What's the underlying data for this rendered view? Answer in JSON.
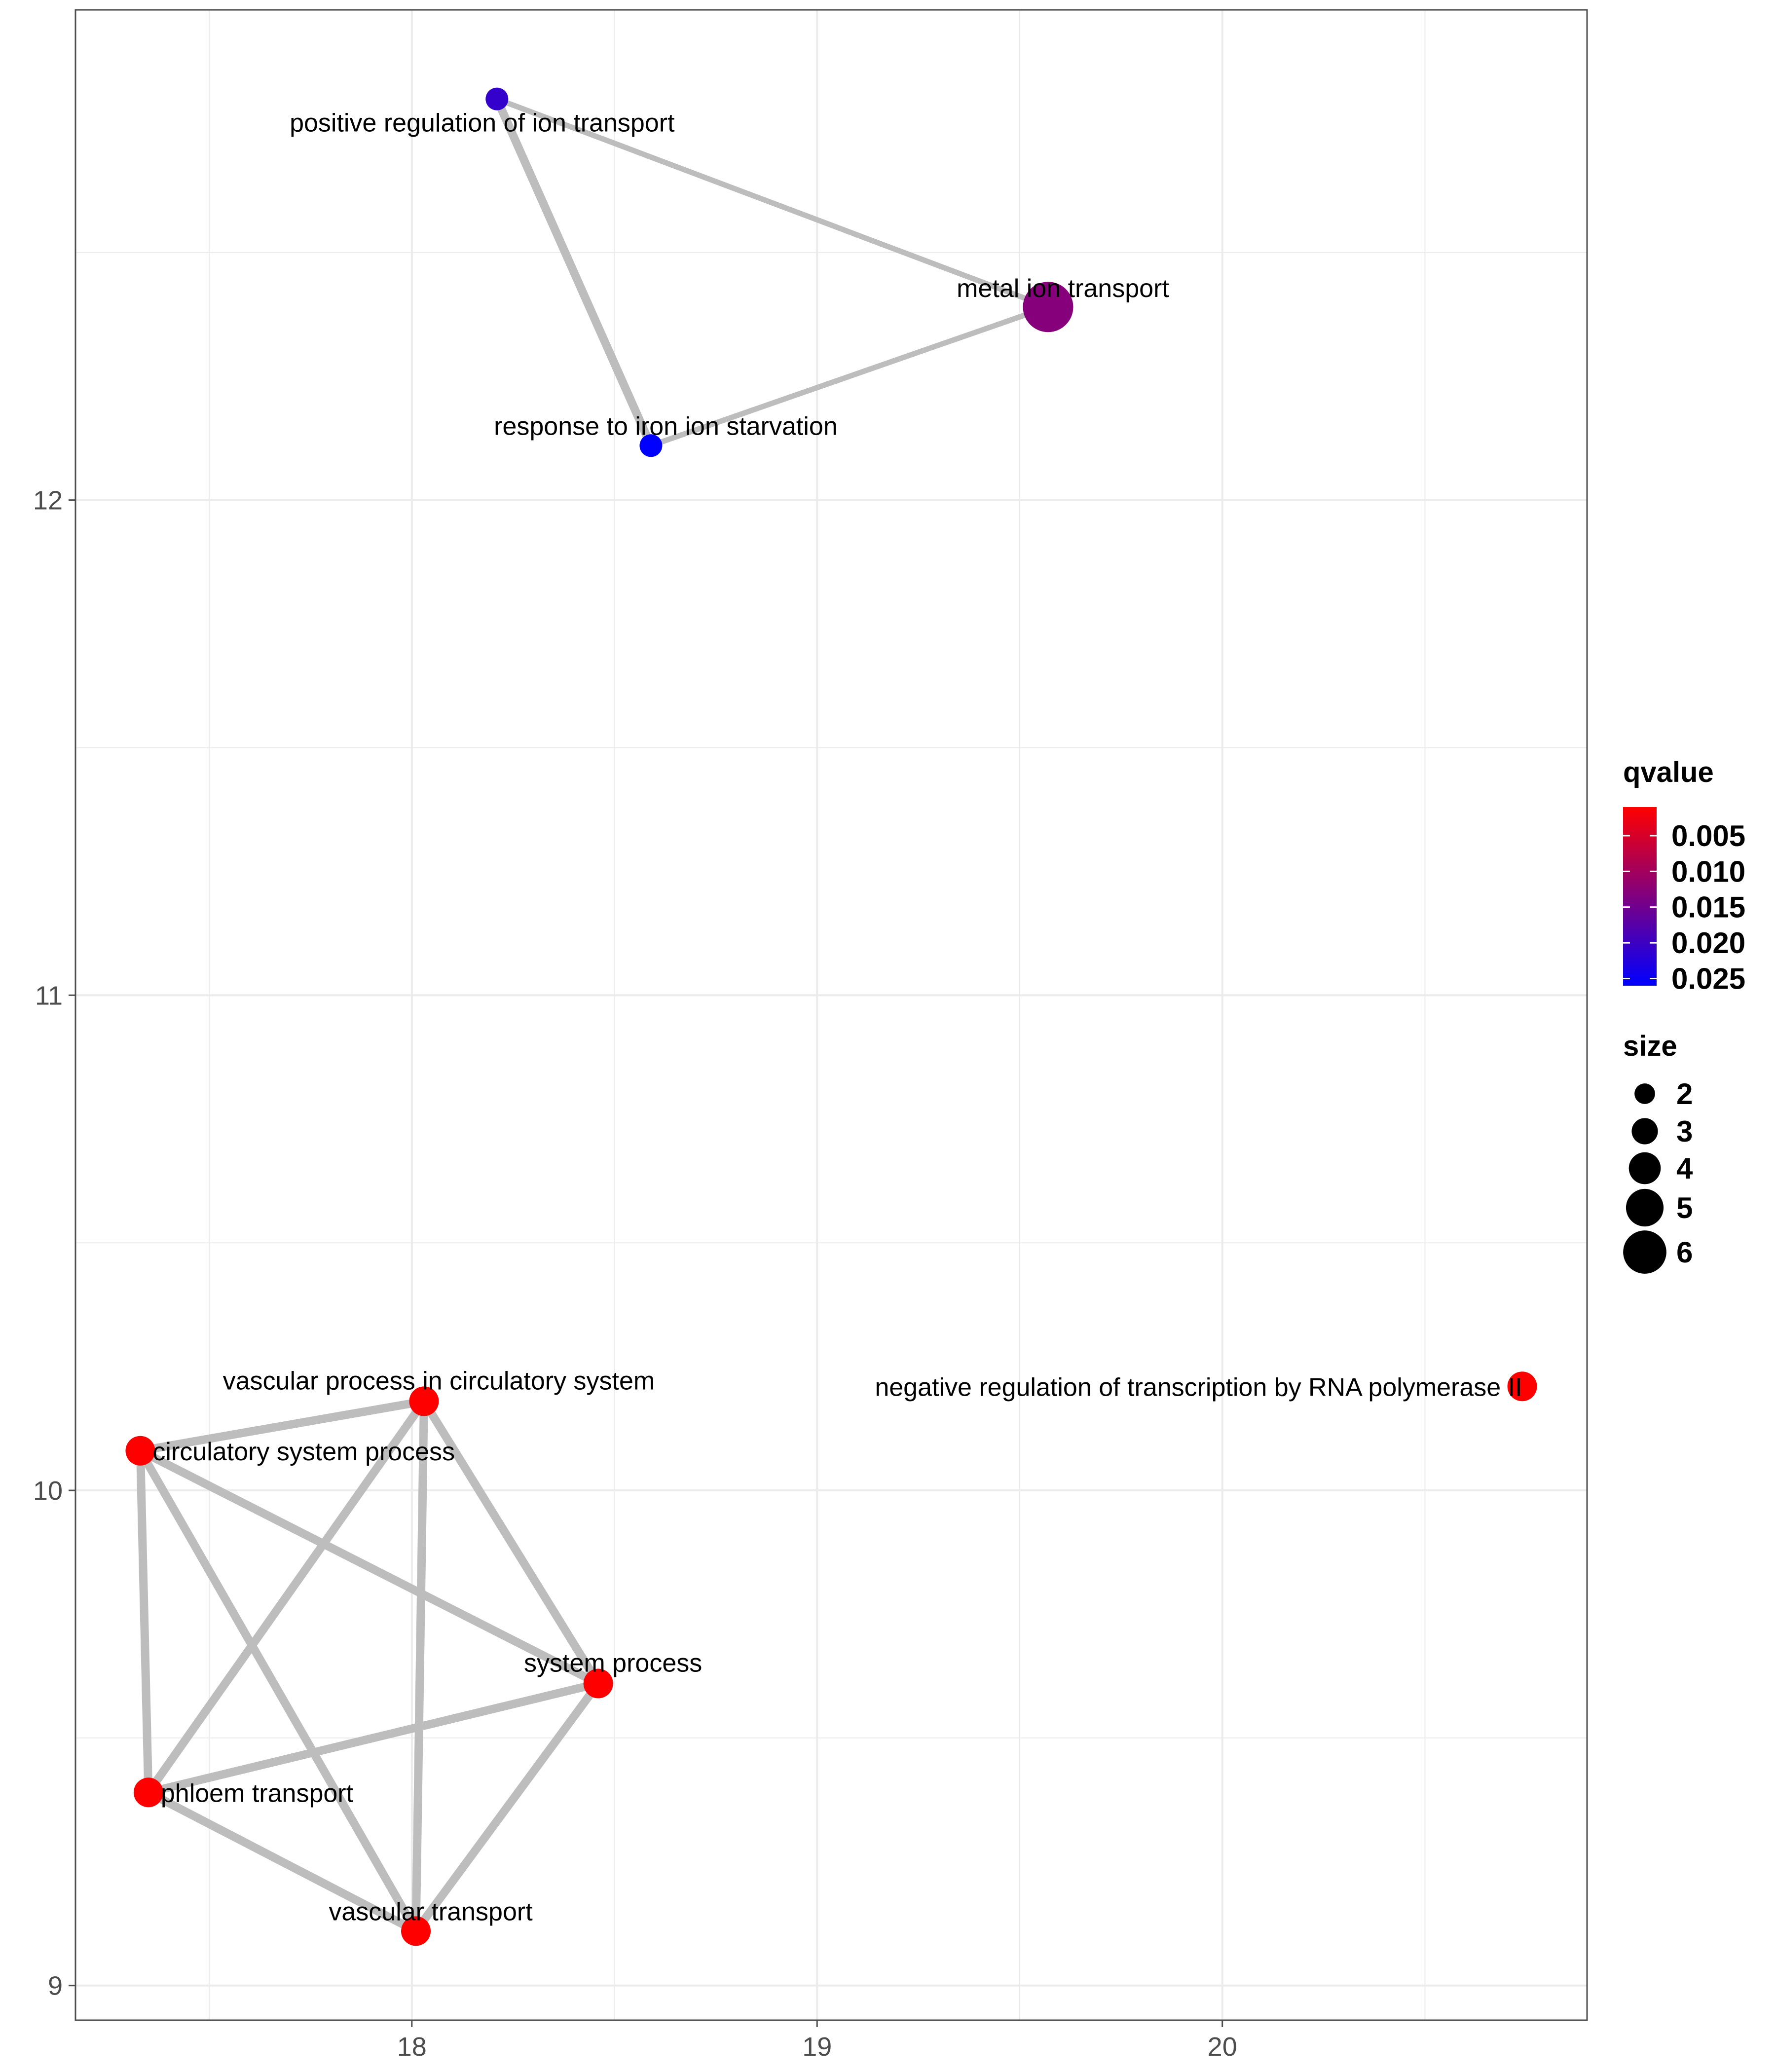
{
  "chart_data": {
    "type": "scatter",
    "subtype": "network",
    "title": "",
    "xlabel": "",
    "ylabel": "",
    "xlim": [
      17.17,
      20.9
    ],
    "ylim": [
      8.93,
      12.99
    ],
    "x_ticks": [
      18,
      19,
      20
    ],
    "y_ticks": [
      9,
      10,
      11,
      12
    ],
    "grid": true,
    "nodes": [
      {
        "id": "pos_reg",
        "label": "positive regulation of ion transport",
        "x": 18.21,
        "y": 12.81,
        "qvalue": 0.021,
        "size": 2
      },
      {
        "id": "metal",
        "label": "metal ion transport",
        "x": 19.57,
        "y": 12.39,
        "qvalue": 0.013,
        "size": 6
      },
      {
        "id": "iron",
        "label": "response to iron ion starvation",
        "x": 18.59,
        "y": 12.11,
        "qvalue": 0.026,
        "size": 2
      },
      {
        "id": "vasc_circ",
        "label": "vascular process in circulatory system",
        "x": 18.03,
        "y": 10.18,
        "qvalue": 0.001,
        "size": 3
      },
      {
        "id": "circ",
        "label": "circulatory system process",
        "x": 17.33,
        "y": 10.08,
        "qvalue": 0.001,
        "size": 3
      },
      {
        "id": "sys",
        "label": "system process",
        "x": 18.46,
        "y": 9.61,
        "qvalue": 0.001,
        "size": 3
      },
      {
        "id": "phloem",
        "label": "phloem transport",
        "x": 17.35,
        "y": 9.39,
        "qvalue": 0.001,
        "size": 3
      },
      {
        "id": "vasc",
        "label": "vascular transport",
        "x": 18.01,
        "y": 9.11,
        "qvalue": 0.001,
        "size": 3
      },
      {
        "id": "neg_reg",
        "label": "negative regulation of transcription by RNA polymerase II",
        "x": 20.74,
        "y": 10.21,
        "qvalue": 0.001,
        "size": 3
      }
    ],
    "edges": [
      {
        "from": "pos_reg",
        "to": "metal",
        "weight": 1
      },
      {
        "from": "pos_reg",
        "to": "iron",
        "weight": 2
      },
      {
        "from": "iron",
        "to": "metal",
        "weight": 1
      },
      {
        "from": "circ",
        "to": "vasc_circ",
        "weight": 2
      },
      {
        "from": "circ",
        "to": "sys",
        "weight": 2
      },
      {
        "from": "circ",
        "to": "phloem",
        "weight": 2
      },
      {
        "from": "circ",
        "to": "vasc",
        "weight": 2
      },
      {
        "from": "vasc_circ",
        "to": "sys",
        "weight": 2
      },
      {
        "from": "vasc_circ",
        "to": "phloem",
        "weight": 2
      },
      {
        "from": "vasc_circ",
        "to": "vasc",
        "weight": 2
      },
      {
        "from": "sys",
        "to": "phloem",
        "weight": 2
      },
      {
        "from": "sys",
        "to": "vasc",
        "weight": 2
      },
      {
        "from": "phloem",
        "to": "vasc",
        "weight": 2
      }
    ],
    "legend": {
      "placement": "right",
      "color": {
        "title": "qvalue",
        "labels": [
          "0.005",
          "0.010",
          "0.015",
          "0.020",
          "0.025"
        ],
        "values": [
          0.005,
          0.01,
          0.015,
          0.02,
          0.025
        ],
        "domain": [
          0.001,
          0.026
        ],
        "low_color": "#ff0000",
        "high_color": "#0000ff"
      },
      "size": {
        "title": "size",
        "labels": [
          "2",
          "3",
          "4",
          "5",
          "6"
        ],
        "values": [
          2,
          3,
          4,
          5,
          6
        ]
      }
    },
    "colors": {
      "edge": "#bdbdbd",
      "grid": "#ebebeb",
      "panel_border": "#4d4d4d",
      "tick_text": "#4d4d4d"
    }
  }
}
